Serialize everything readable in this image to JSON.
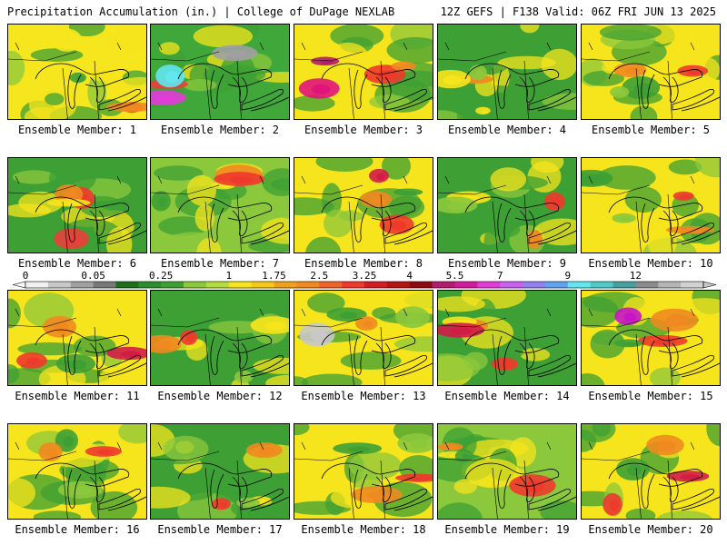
{
  "header": {
    "left": "Precipitation Accumulation (in.) | College of DuPage NEXLAB",
    "right": "12Z GEFS | F138 Valid: 06Z FRI JUN 13 2025"
  },
  "panel_label_prefix": "Ensemble Member: ",
  "members": [
    {
      "label": "Ensemble Member: 1",
      "base": "#f5e61e",
      "blobs": [
        "#ee3a2c",
        "#f08a20",
        "#3ea034",
        "#f5e61e"
      ]
    },
    {
      "label": "Ensemble Member: 2",
      "base": "#40a83a",
      "blobs": [
        "#e8403a",
        "#e13cd8",
        "#62e6f0",
        "#a0a0a0"
      ]
    },
    {
      "label": "Ensemble Member: 3",
      "base": "#f6e41c",
      "blobs": [
        "#b41c6e",
        "#e0147c",
        "#ee3a2c",
        "#f08a20"
      ]
    },
    {
      "label": "Ensemble Member: 4",
      "base": "#3ea034",
      "blobs": [
        "#f6e41c",
        "#f08a20",
        "#8cc83c",
        "#f6e41c"
      ]
    },
    {
      "label": "Ensemble Member: 5",
      "base": "#f6e41c",
      "blobs": [
        "#3ea034",
        "#f08a20",
        "#ee3a2c",
        "#8cc83c"
      ]
    },
    {
      "label": "Ensemble Member: 6",
      "base": "#3ea034",
      "blobs": [
        "#ee3a2c",
        "#f08a20",
        "#f6e41c",
        "#e8403a"
      ]
    },
    {
      "label": "Ensemble Member: 7",
      "base": "#8cc83c",
      "blobs": [
        "#f08a20",
        "#f6e41c",
        "#3ea034",
        "#ee3a2c"
      ]
    },
    {
      "label": "Ensemble Member: 8",
      "base": "#f6e41c",
      "blobs": [
        "#ee3a2c",
        "#d21c48",
        "#f08a20",
        "#3ea034"
      ]
    },
    {
      "label": "Ensemble Member: 9",
      "base": "#3ea034",
      "blobs": [
        "#ee3a2c",
        "#f08a20",
        "#f6e41c",
        "#8cc83c"
      ]
    },
    {
      "label": "Ensemble Member: 10",
      "base": "#f6e41c",
      "blobs": [
        "#3ea034",
        "#f08a20",
        "#ee3a2c",
        "#8cc83c"
      ]
    },
    {
      "label": "Ensemble Member: 11",
      "base": "#f6e41c",
      "blobs": [
        "#ee3a2c",
        "#d21c48",
        "#f08a20",
        "#3ea034"
      ]
    },
    {
      "label": "Ensemble Member: 12",
      "base": "#3ea034",
      "blobs": [
        "#ee3a2c",
        "#f08a20",
        "#f6e41c",
        "#8cc83c"
      ]
    },
    {
      "label": "Ensemble Member: 13",
      "base": "#f6e41c",
      "blobs": [
        "#3ea034",
        "#c8c8c8",
        "#f08a20",
        "#8cc83c"
      ]
    },
    {
      "label": "Ensemble Member: 14",
      "base": "#3ea034",
      "blobs": [
        "#ee3a2c",
        "#f08a20",
        "#f6e41c",
        "#d21c48"
      ]
    },
    {
      "label": "Ensemble Member: 15",
      "base": "#f6e41c",
      "blobs": [
        "#ee3a2c",
        "#c814c8",
        "#f08a20",
        "#3ea034"
      ]
    },
    {
      "label": "Ensemble Member: 16",
      "base": "#f6e41c",
      "blobs": [
        "#ee3a2c",
        "#3ea034",
        "#f08a20",
        "#8cc83c"
      ]
    },
    {
      "label": "Ensemble Member: 17",
      "base": "#3ea034",
      "blobs": [
        "#f6e41c",
        "#ee3a2c",
        "#f08a20",
        "#8cc83c"
      ]
    },
    {
      "label": "Ensemble Member: 18",
      "base": "#f6e41c",
      "blobs": [
        "#ee3a2c",
        "#f08a20",
        "#3ea034",
        "#8cc83c"
      ]
    },
    {
      "label": "Ensemble Member: 19",
      "base": "#8cc83c",
      "blobs": [
        "#f6e41c",
        "#ee3a2c",
        "#f08a20",
        "#3ea034"
      ]
    },
    {
      "label": "Ensemble Member: 20",
      "base": "#f6e41c",
      "blobs": [
        "#ee3a2c",
        "#d21c48",
        "#f08a20",
        "#3ea034"
      ]
    }
  ],
  "colorbar": {
    "colors": [
      "#f0f0f0",
      "#c8c8c8",
      "#a0a0a0",
      "#787878",
      "#1e6e1e",
      "#2d8c2d",
      "#3ea034",
      "#8cc83c",
      "#b4dc3c",
      "#f6e41c",
      "#f8c818",
      "#f0a01c",
      "#f08a20",
      "#ee6428",
      "#ee3a2c",
      "#d21c24",
      "#b41414",
      "#8c0a14",
      "#b41c6e",
      "#d21c9c",
      "#e13cd8",
      "#c860f0",
      "#9080f0",
      "#62a0f0",
      "#62e6f0",
      "#50c8c8",
      "#46a0a0",
      "#8c8c8c",
      "#b4b4b4",
      "#d2d2d2"
    ],
    "ticks": [
      "0",
      "0.05",
      "0.25",
      "1",
      "1.75",
      "2.5",
      "3.25",
      "4",
      "5.5",
      "7",
      "9",
      "12"
    ]
  }
}
